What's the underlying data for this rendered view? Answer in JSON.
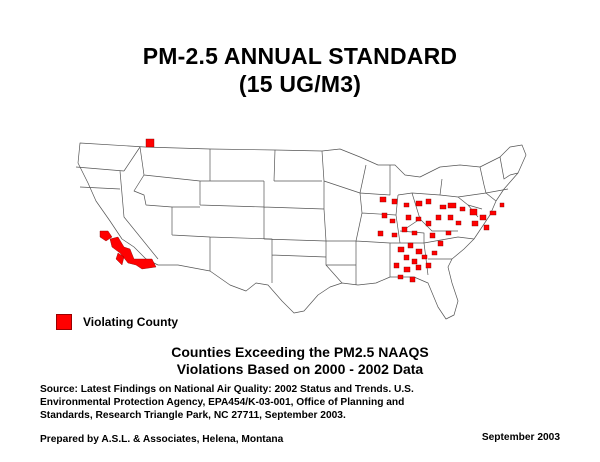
{
  "title": {
    "line1": "PM-2.5 ANNUAL STANDARD",
    "line2": "(15 UG/M3)"
  },
  "legend": {
    "label": "Violating County",
    "color": "#ff0000"
  },
  "caption": {
    "line1": "Counties Exceeding the PM2.5 NAAQS",
    "line2": "Violations Based on 2000 - 2002 Data"
  },
  "source": {
    "line1": "Source: Latest Findings on National Air Quality: 2002 Status and Trends. U.S.",
    "line2": "Environmental Protection Agency, EPA454/K-03-001, Office of Planning and",
    "line3": "Standards, Research Triangle Park, NC 27711, September 2003."
  },
  "footer": {
    "prepared_by": "Prepared by A.S.L. & Associates, Helena, Montana",
    "date": "September 2003"
  },
  "map": {
    "state_color": "#ffffff",
    "border_color": "#555555",
    "violation_color": "#ff0000"
  }
}
